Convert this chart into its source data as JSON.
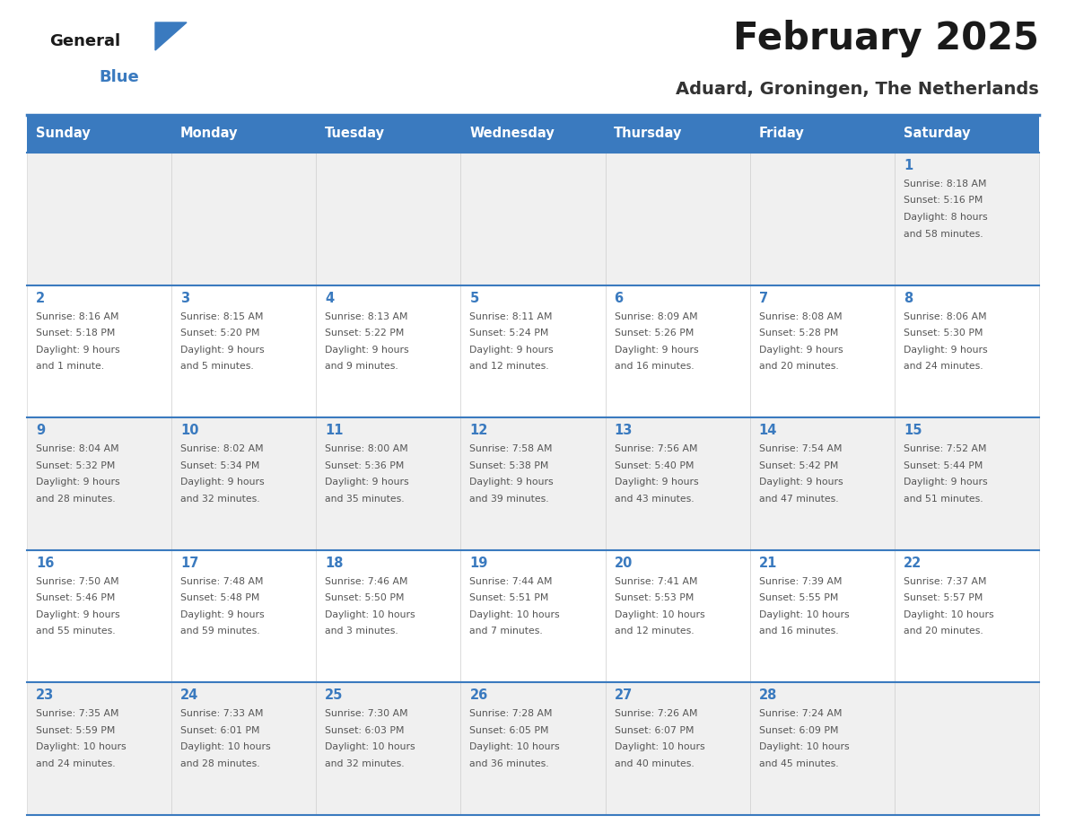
{
  "title": "February 2025",
  "subtitle": "Aduard, Groningen, The Netherlands",
  "header_color": "#3a7abf",
  "header_text_color": "#ffffff",
  "day_names": [
    "Sunday",
    "Monday",
    "Tuesday",
    "Wednesday",
    "Thursday",
    "Friday",
    "Saturday"
  ],
  "background_color": "#ffffff",
  "cell_bg_even": "#f0f0f0",
  "cell_bg_odd": "#ffffff",
  "day_num_color": "#3a7abf",
  "info_text_color": "#555555",
  "border_color": "#3a7abf",
  "calendar_data": [
    [
      null,
      null,
      null,
      null,
      null,
      null,
      {
        "day": 1,
        "sunrise": "8:18 AM",
        "sunset": "5:16 PM",
        "daylight_h": "8 hours",
        "daylight_m": "and 58 minutes."
      }
    ],
    [
      {
        "day": 2,
        "sunrise": "8:16 AM",
        "sunset": "5:18 PM",
        "daylight_h": "9 hours",
        "daylight_m": "and 1 minute."
      },
      {
        "day": 3,
        "sunrise": "8:15 AM",
        "sunset": "5:20 PM",
        "daylight_h": "9 hours",
        "daylight_m": "and 5 minutes."
      },
      {
        "day": 4,
        "sunrise": "8:13 AM",
        "sunset": "5:22 PM",
        "daylight_h": "9 hours",
        "daylight_m": "and 9 minutes."
      },
      {
        "day": 5,
        "sunrise": "8:11 AM",
        "sunset": "5:24 PM",
        "daylight_h": "9 hours",
        "daylight_m": "and 12 minutes."
      },
      {
        "day": 6,
        "sunrise": "8:09 AM",
        "sunset": "5:26 PM",
        "daylight_h": "9 hours",
        "daylight_m": "and 16 minutes."
      },
      {
        "day": 7,
        "sunrise": "8:08 AM",
        "sunset": "5:28 PM",
        "daylight_h": "9 hours",
        "daylight_m": "and 20 minutes."
      },
      {
        "day": 8,
        "sunrise": "8:06 AM",
        "sunset": "5:30 PM",
        "daylight_h": "9 hours",
        "daylight_m": "and 24 minutes."
      }
    ],
    [
      {
        "day": 9,
        "sunrise": "8:04 AM",
        "sunset": "5:32 PM",
        "daylight_h": "9 hours",
        "daylight_m": "and 28 minutes."
      },
      {
        "day": 10,
        "sunrise": "8:02 AM",
        "sunset": "5:34 PM",
        "daylight_h": "9 hours",
        "daylight_m": "and 32 minutes."
      },
      {
        "day": 11,
        "sunrise": "8:00 AM",
        "sunset": "5:36 PM",
        "daylight_h": "9 hours",
        "daylight_m": "and 35 minutes."
      },
      {
        "day": 12,
        "sunrise": "7:58 AM",
        "sunset": "5:38 PM",
        "daylight_h": "9 hours",
        "daylight_m": "and 39 minutes."
      },
      {
        "day": 13,
        "sunrise": "7:56 AM",
        "sunset": "5:40 PM",
        "daylight_h": "9 hours",
        "daylight_m": "and 43 minutes."
      },
      {
        "day": 14,
        "sunrise": "7:54 AM",
        "sunset": "5:42 PM",
        "daylight_h": "9 hours",
        "daylight_m": "and 47 minutes."
      },
      {
        "day": 15,
        "sunrise": "7:52 AM",
        "sunset": "5:44 PM",
        "daylight_h": "9 hours",
        "daylight_m": "and 51 minutes."
      }
    ],
    [
      {
        "day": 16,
        "sunrise": "7:50 AM",
        "sunset": "5:46 PM",
        "daylight_h": "9 hours",
        "daylight_m": "and 55 minutes."
      },
      {
        "day": 17,
        "sunrise": "7:48 AM",
        "sunset": "5:48 PM",
        "daylight_h": "9 hours",
        "daylight_m": "and 59 minutes."
      },
      {
        "day": 18,
        "sunrise": "7:46 AM",
        "sunset": "5:50 PM",
        "daylight_h": "10 hours",
        "daylight_m": "and 3 minutes."
      },
      {
        "day": 19,
        "sunrise": "7:44 AM",
        "sunset": "5:51 PM",
        "daylight_h": "10 hours",
        "daylight_m": "and 7 minutes."
      },
      {
        "day": 20,
        "sunrise": "7:41 AM",
        "sunset": "5:53 PM",
        "daylight_h": "10 hours",
        "daylight_m": "and 12 minutes."
      },
      {
        "day": 21,
        "sunrise": "7:39 AM",
        "sunset": "5:55 PM",
        "daylight_h": "10 hours",
        "daylight_m": "and 16 minutes."
      },
      {
        "day": 22,
        "sunrise": "7:37 AM",
        "sunset": "5:57 PM",
        "daylight_h": "10 hours",
        "daylight_m": "and 20 minutes."
      }
    ],
    [
      {
        "day": 23,
        "sunrise": "7:35 AM",
        "sunset": "5:59 PM",
        "daylight_h": "10 hours",
        "daylight_m": "and 24 minutes."
      },
      {
        "day": 24,
        "sunrise": "7:33 AM",
        "sunset": "6:01 PM",
        "daylight_h": "10 hours",
        "daylight_m": "and 28 minutes."
      },
      {
        "day": 25,
        "sunrise": "7:30 AM",
        "sunset": "6:03 PM",
        "daylight_h": "10 hours",
        "daylight_m": "and 32 minutes."
      },
      {
        "day": 26,
        "sunrise": "7:28 AM",
        "sunset": "6:05 PM",
        "daylight_h": "10 hours",
        "daylight_m": "and 36 minutes."
      },
      {
        "day": 27,
        "sunrise": "7:26 AM",
        "sunset": "6:07 PM",
        "daylight_h": "10 hours",
        "daylight_m": "and 40 minutes."
      },
      {
        "day": 28,
        "sunrise": "7:24 AM",
        "sunset": "6:09 PM",
        "daylight_h": "10 hours",
        "daylight_m": "and 45 minutes."
      },
      null
    ]
  ]
}
